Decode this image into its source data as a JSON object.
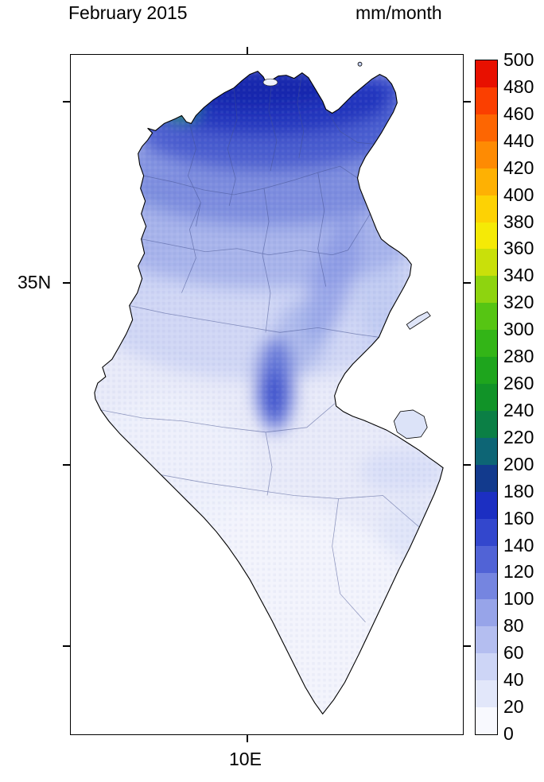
{
  "title": "February 2015",
  "units_label": "mm/month",
  "axes": {
    "y_tick_label": "35N",
    "x_tick_label": "10E"
  },
  "colorbar": {
    "orientation": "vertical",
    "value_min": 0,
    "value_max": 500,
    "value_step": 20,
    "levels": [
      "500",
      "480",
      "460",
      "440",
      "420",
      "400",
      "380",
      "360",
      "340",
      "320",
      "300",
      "280",
      "260",
      "240",
      "220",
      "200",
      "180",
      "160",
      "140",
      "120",
      "100",
      "80",
      "60",
      "40",
      "20",
      "0"
    ],
    "colors_top_to_bottom": [
      "#e81000",
      "#fb3f00",
      "#fd6602",
      "#fe8b03",
      "#feb103",
      "#fdd204",
      "#f5ea06",
      "#c9e00a",
      "#8ed40f",
      "#56c513",
      "#33b517",
      "#1ea51d",
      "#119328",
      "#0b7f45",
      "#0d6575",
      "#123a8d",
      "#1c2fc2",
      "#3347cd",
      "#5163d6",
      "#7585e0",
      "#97a4e9",
      "#b4bef0",
      "#cdd5f6",
      "#e2e7fa",
      "#f8f9fe"
    ]
  },
  "map": {
    "high_precip_color": "#1226ad",
    "low_precip_color": "#f3f5fd",
    "peak_spot_color": "#4ec431",
    "outline_color": "#000000"
  }
}
